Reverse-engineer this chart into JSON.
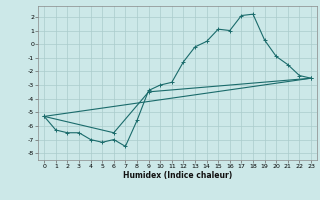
{
  "title": "",
  "xlabel": "Humidex (Indice chaleur)",
  "ylabel": "",
  "bg_color": "#cce8e8",
  "grid_color": "#aacccc",
  "line_color": "#1a6b6b",
  "xlim": [
    -0.5,
    23.5
  ],
  "ylim": [
    -8.5,
    2.8
  ],
  "xticks": [
    0,
    1,
    2,
    3,
    4,
    5,
    6,
    7,
    8,
    9,
    10,
    11,
    12,
    13,
    14,
    15,
    16,
    17,
    18,
    19,
    20,
    21,
    22,
    23
  ],
  "yticks": [
    2,
    1,
    0,
    -1,
    -2,
    -3,
    -4,
    -5,
    -6,
    -7,
    -8
  ],
  "curve1_x": [
    0,
    1,
    2,
    3,
    4,
    5,
    6,
    7,
    8,
    9,
    10,
    11,
    12,
    13,
    14,
    15,
    16,
    17,
    18,
    19,
    20,
    21,
    22,
    23
  ],
  "curve1_y": [
    -5.3,
    -6.3,
    -6.5,
    -6.5,
    -7.0,
    -7.2,
    -7.0,
    -7.5,
    -5.6,
    -3.4,
    -3.0,
    -2.8,
    -1.3,
    -0.2,
    0.2,
    1.1,
    1.0,
    2.1,
    2.2,
    0.3,
    -0.9,
    -1.5,
    -2.3,
    -2.5
  ],
  "curve2_x": [
    0,
    23
  ],
  "curve2_y": [
    -5.3,
    -2.5
  ],
  "curve3_x": [
    0,
    6,
    9,
    23
  ],
  "curve3_y": [
    -5.3,
    -6.5,
    -3.5,
    -2.5
  ]
}
